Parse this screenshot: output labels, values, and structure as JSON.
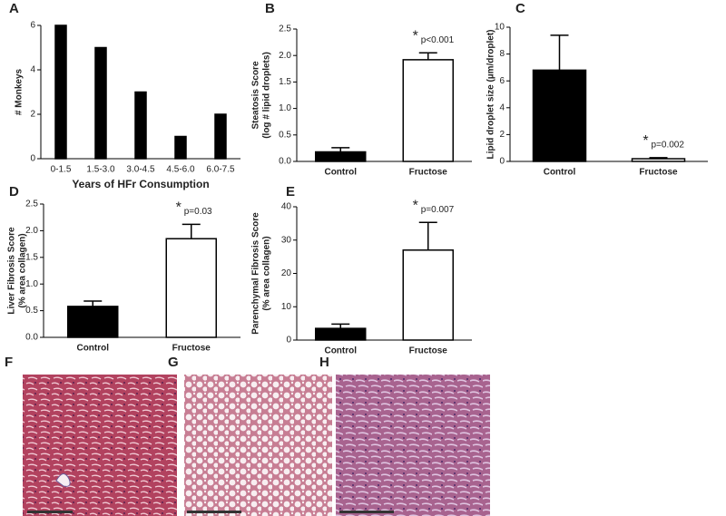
{
  "chart_data": [
    {
      "type": "bar",
      "panel": "A",
      "categories": [
        "0-1.5",
        "1.5-3.0",
        "3.0-4.5",
        "4.5-6.0",
        "6.0-7.5"
      ],
      "values": [
        6,
        5,
        3,
        1,
        2
      ],
      "color": "#000000",
      "ylim": [
        0,
        6
      ],
      "yticks": [
        0,
        2,
        4,
        6
      ],
      "ylabel": [
        "# Monkeys"
      ],
      "xlabel": "Years of HFr  Consumption"
    },
    {
      "type": "bar",
      "panel": "B",
      "categories": [
        "Control",
        "Fructose"
      ],
      "values": [
        0.18,
        1.92
      ],
      "errors": [
        0.08,
        0.13
      ],
      "colors": [
        "#000000",
        "#ffffff"
      ],
      "ylim": [
        0,
        2.5
      ],
      "yticks": [
        {
          "value": 0,
          "label": "0.0"
        },
        0.5,
        {
          "value": 1,
          "label": "1.0"
        },
        1.5,
        {
          "value": 2,
          "label": "2.0"
        },
        2.5
      ],
      "ylabel": [
        "Steatosis Score",
        "(log # lipid droplets)"
      ],
      "annotations": [
        "*",
        "p<0.001"
      ]
    },
    {
      "type": "bar",
      "panel": "C",
      "categories": [
        "Control",
        "Fructose"
      ],
      "values": [
        6.8,
        0.2
      ],
      "errors": [
        2.6,
        0.08
      ],
      "colors": [
        "#000000",
        "#ffffff"
      ],
      "ylim": [
        0,
        10
      ],
      "yticks": [
        0,
        2,
        4,
        6,
        8,
        10
      ],
      "ylabel": [
        "Lipid droplet size  (µm/droplet)"
      ],
      "annotations": [
        "*",
        "p=0.002"
      ]
    },
    {
      "type": "bar",
      "panel": "D",
      "categories": [
        "Control",
        "Fructose"
      ],
      "values": [
        0.58,
        1.85
      ],
      "errors": [
        0.1,
        0.27
      ],
      "colors": [
        "#000000",
        "#ffffff"
      ],
      "ylim": [
        0,
        2.5
      ],
      "yticks": [
        {
          "value": 0,
          "label": "0.0"
        },
        0.5,
        {
          "value": 1,
          "label": "1.0"
        },
        1.5,
        {
          "value": 2,
          "label": "2.0"
        },
        2.5
      ],
      "ylabel": [
        "Liver Fibrosis Score",
        "(% area collagen)"
      ],
      "annotations": [
        "*",
        "p=0.03"
      ]
    },
    {
      "type": "bar",
      "panel": "E",
      "categories": [
        "Control",
        "Fructose"
      ],
      "values": [
        3.5,
        27
      ],
      "errors": [
        1.3,
        8.3
      ],
      "colors": [
        "#000000",
        "#ffffff"
      ],
      "ylim": [
        0,
        40
      ],
      "yticks": [
        0,
        10,
        20,
        30,
        40
      ],
      "ylabel": [
        "Parenchymal Fibrosis Score",
        "(% area collagen)"
      ],
      "annotations": [
        "*",
        "p=0.007"
      ]
    }
  ],
  "images": [
    {
      "panel": "F"
    },
    {
      "panel": "G"
    },
    {
      "panel": "H"
    }
  ]
}
